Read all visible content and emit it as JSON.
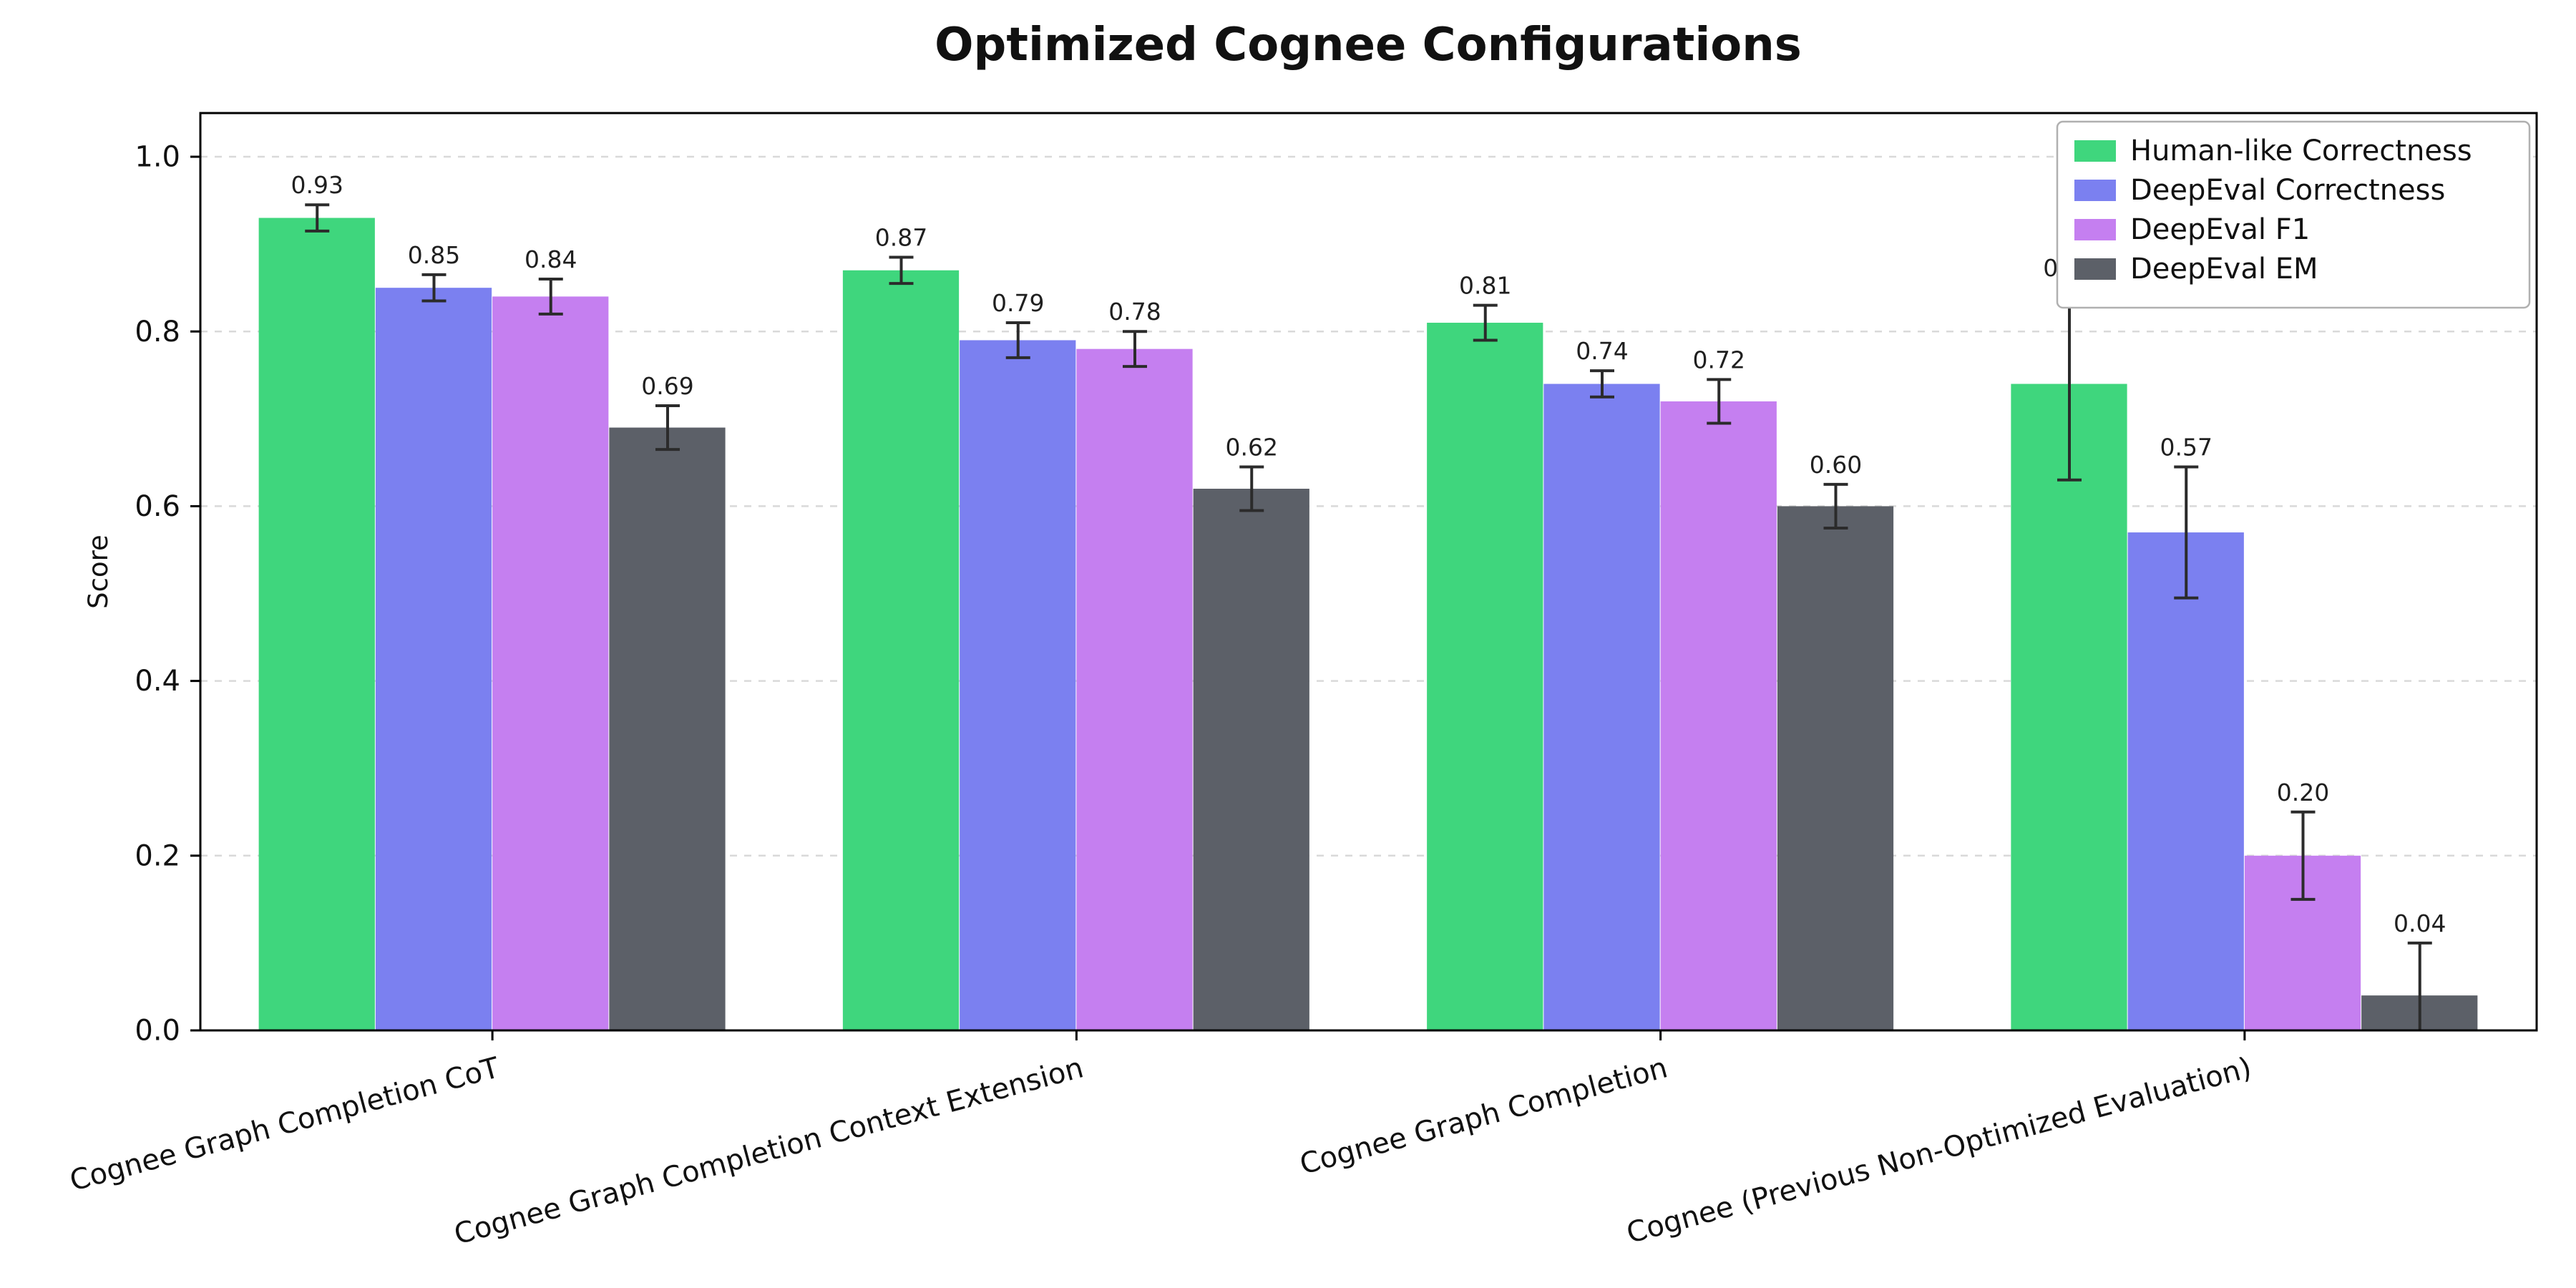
{
  "chart_data": {
    "type": "bar",
    "title": "Optimized Cognee Configurations",
    "xlabel": "",
    "ylabel": "Score",
    "ylim": [
      0,
      1.05
    ],
    "yticks": [
      0.0,
      0.2,
      0.4,
      0.6,
      0.8,
      1.0
    ],
    "grid": "horizontal-dashed",
    "legend_position": "upper-right",
    "error_bars": true,
    "categories": [
      "Cognee Graph Completion CoT",
      "Cognee Graph Completion Context Extension",
      "Cognee Graph Completion",
      "Cognee (Previous Non-Optimized Evaluation)"
    ],
    "series": [
      {
        "name": "Human-like Correctness",
        "color": "#3fd67d",
        "values": [
          0.93,
          0.87,
          0.81,
          0.74
        ],
        "errors": [
          0.015,
          0.015,
          0.02,
          0.11
        ]
      },
      {
        "name": "DeepEval Correctness",
        "color": "#7b80f0",
        "values": [
          0.85,
          0.79,
          0.74,
          0.57
        ],
        "errors": [
          0.015,
          0.02,
          0.015,
          0.075
        ]
      },
      {
        "name": "DeepEval F1",
        "color": "#c57ff0",
        "values": [
          0.84,
          0.78,
          0.72,
          0.2
        ],
        "errors": [
          0.02,
          0.02,
          0.025,
          0.05
        ]
      },
      {
        "name": "DeepEval EM",
        "color": "#5c6068",
        "values": [
          0.69,
          0.62,
          0.6,
          0.04
        ],
        "errors": [
          0.025,
          0.025,
          0.025,
          0.06
        ]
      }
    ],
    "style": {
      "grid_color": "#d9d9d9",
      "spine_color": "#000000",
      "errorbar_color": "#2b2b2b",
      "label_color": "#1f1f1f",
      "legend_border_color": "#b0b0b0",
      "background": "#ffffff"
    }
  }
}
